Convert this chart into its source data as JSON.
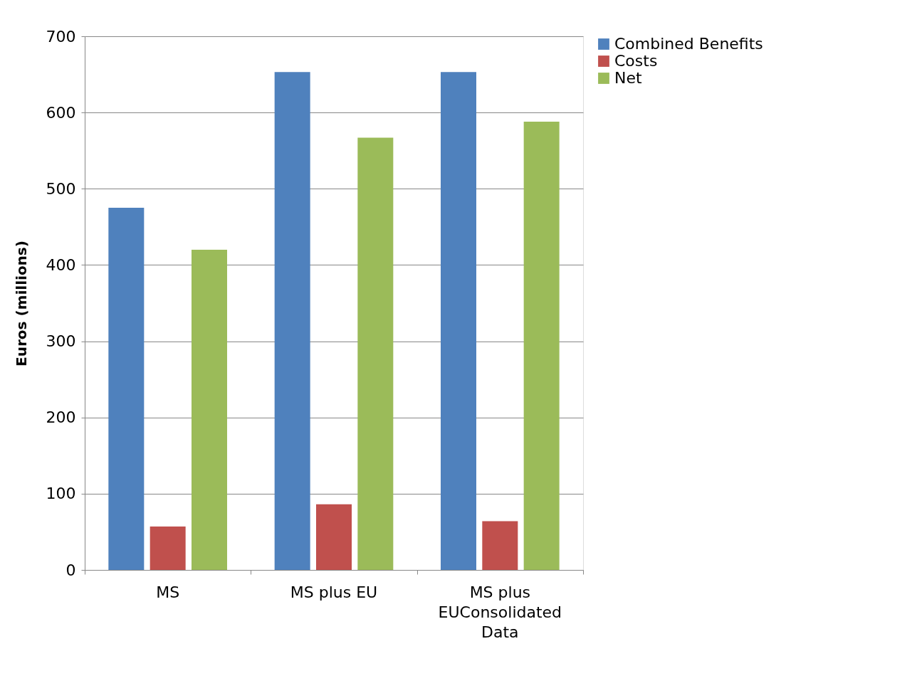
{
  "chart_data": {
    "type": "bar",
    "ylabel": "Euros (millions)",
    "categories": [
      "MS",
      "MS plus EU",
      "MS plus EUConsolidated Data"
    ],
    "series": [
      {
        "name": "Combined Benefits",
        "color": "#4f81bd",
        "values": [
          475,
          653,
          653
        ]
      },
      {
        "name": "Costs",
        "color": "#c0504d",
        "values": [
          57,
          86,
          64
        ]
      },
      {
        "name": "Net",
        "color": "#9bbb59",
        "values": [
          420,
          567,
          588
        ]
      }
    ],
    "ylim": [
      0,
      700
    ],
    "yticks": [
      0,
      100,
      200,
      300,
      400,
      500,
      600,
      700
    ],
    "grid": "y",
    "legend": "right"
  }
}
